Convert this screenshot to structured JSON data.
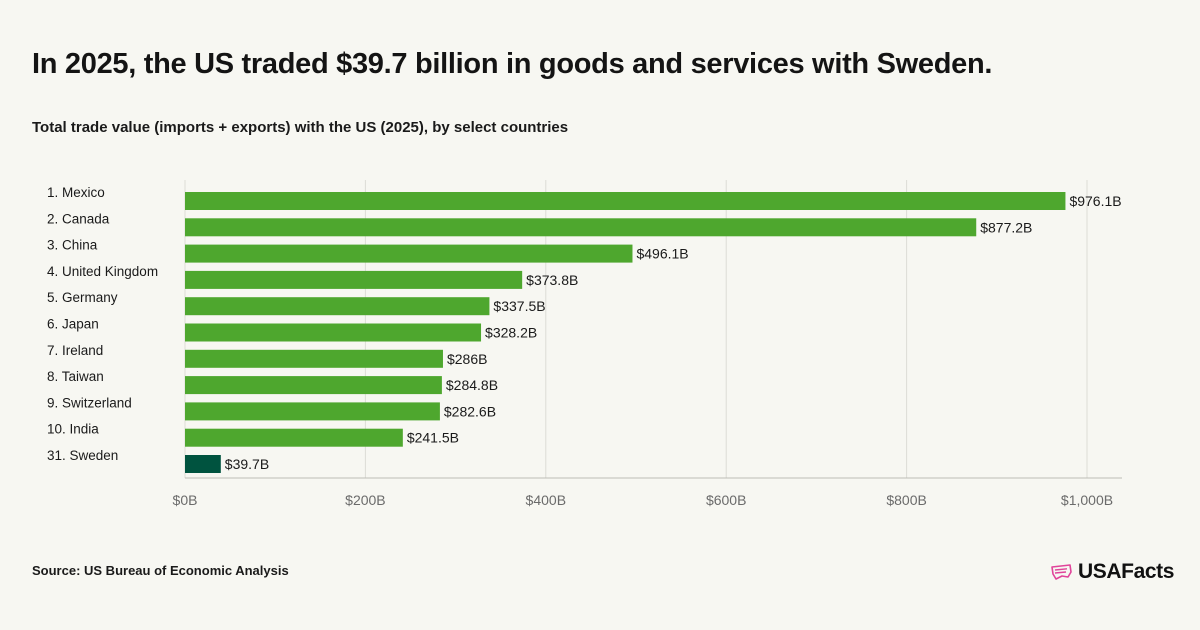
{
  "header": {
    "title": "In 2025, the US traded $39.7 billion in goods and services with Sweden.",
    "subtitle": "Total trade value (imports + exports) with the US (2025), by select countries"
  },
  "footer": {
    "source": "Source: US Bureau of Economic Analysis",
    "logo_text": "USAFacts",
    "logo_icon": "us-flag-outline-icon"
  },
  "colors": {
    "bar": "#4ea72e",
    "highlight_bar": "#00533f",
    "grid": "#dcdcd6",
    "axis_text": "#6b6b6b",
    "logo_accent": "#e0449a"
  },
  "chart_data": {
    "type": "bar",
    "orientation": "horizontal",
    "categories": [
      "1. Mexico",
      "2. Canada",
      "3. China",
      "4. United Kingdom",
      "5. Germany",
      "6. Japan",
      "7. Ireland",
      "8. Taiwan",
      "9. Switzerland",
      "10. India",
      "31. Sweden"
    ],
    "values": [
      976.1,
      877.2,
      496.1,
      373.8,
      337.5,
      328.2,
      286,
      284.8,
      282.6,
      241.5,
      39.7
    ],
    "value_labels": [
      "$976.1B",
      "$877.2B",
      "$496.1B",
      "$373.8B",
      "$337.5B",
      "$328.2B",
      "$286B",
      "$284.8B",
      "$282.6B",
      "$241.5B",
      "$39.7B"
    ],
    "highlight": "31. Sweden",
    "xlim": [
      0,
      1000
    ],
    "xticks": [
      0,
      200,
      400,
      600,
      800,
      1000
    ],
    "xtick_labels": [
      "$0B",
      "$200B",
      "$400B",
      "$600B",
      "$800B",
      "$1,000B"
    ],
    "grid": true
  }
}
